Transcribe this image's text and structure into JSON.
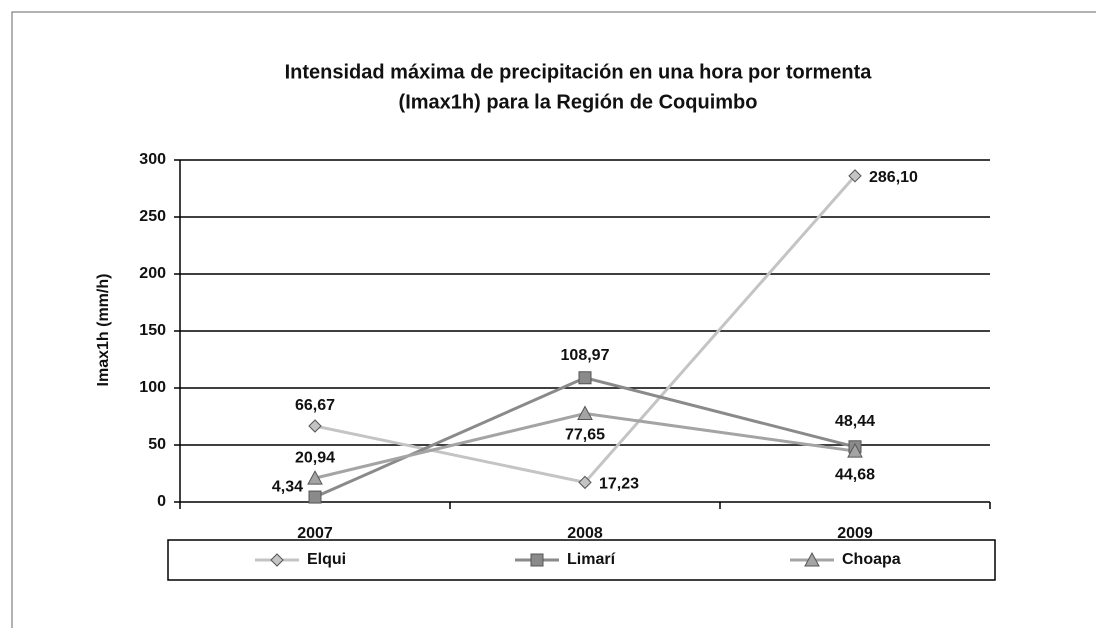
{
  "chart_data": {
    "type": "line",
    "title": [
      "Intensidad máxima de precipitación en una hora por tormenta",
      "(Imax1h) para la Región de Coquimbo"
    ],
    "y_label": "Imax1h (mm/h)",
    "categories": [
      "2007",
      "2008",
      "2009"
    ],
    "series": [
      {
        "name": "Elqui",
        "color": "#c4c4c4",
        "marker": "diamond",
        "values": [
          66.67,
          17.23,
          286.1
        ],
        "value_labels": [
          "66,67",
          "17,23",
          "286,10"
        ]
      },
      {
        "name": "Limarí",
        "color": "#8a8a8a",
        "marker": "square",
        "values": [
          4.34,
          108.97,
          48.44
        ],
        "value_labels": [
          "4,34",
          "108,97",
          "48,44"
        ]
      },
      {
        "name": "Choapa",
        "color": "#a4a4a4",
        "marker": "triangle",
        "values": [
          20.94,
          77.65,
          44.68
        ],
        "value_labels": [
          "20,94",
          "77,65",
          "44,68"
        ]
      }
    ],
    "ylim": [
      0,
      300
    ],
    "yticks": [
      0,
      50,
      100,
      150,
      200,
      250,
      300
    ],
    "grid": true,
    "legend": "bottom"
  }
}
